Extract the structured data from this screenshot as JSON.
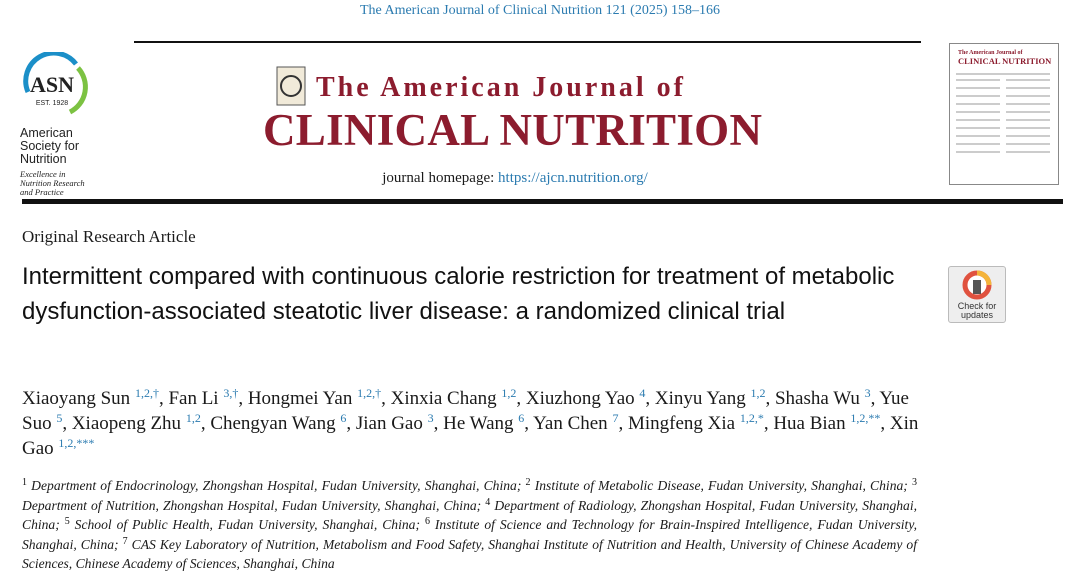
{
  "header": {
    "citation": "The American Journal of Clinical Nutrition 121 (2025) 158–166"
  },
  "society": {
    "logo": "ASN",
    "established": "EST. 1928",
    "name_lines": [
      "American",
      "Society for",
      "Nutrition"
    ],
    "tagline_lines": [
      "Excellence in",
      "Nutrition Research",
      "and Practice"
    ]
  },
  "journal": {
    "title_line1": "The American Journal of",
    "title_line2": "CLINICAL NUTRITION",
    "homepage_label": "journal homepage:",
    "homepage_url": "https://ajcn.nutrition.org/"
  },
  "article": {
    "type": "Original Research Article",
    "title": "Intermittent compared with continuous calorie restriction for treatment of metabolic dysfunction-associated steatotic liver disease: a randomized clinical trial",
    "check_updates": [
      "Check for",
      "updates"
    ]
  },
  "authors_separator": ",",
  "authors": [
    {
      "name": "Xiaoyang Sun",
      "sup": "1,2,†"
    },
    {
      "name": "Fan Li",
      "sup": "3,†"
    },
    {
      "name": "Hongmei Yan",
      "sup": "1,2,†"
    },
    {
      "name": "Xinxia Chang",
      "sup": "1,2"
    },
    {
      "name": "Xiuzhong Yao",
      "sup": "4"
    },
    {
      "name": "Xinyu Yang",
      "sup": "1,2"
    },
    {
      "name": "Shasha Wu",
      "sup": "3"
    },
    {
      "name": "Yue Suo",
      "sup": "5"
    },
    {
      "name": "Xiaopeng Zhu",
      "sup": "1,2"
    },
    {
      "name": "Chengyan Wang",
      "sup": "6"
    },
    {
      "name": "Jian Gao",
      "sup": "3"
    },
    {
      "name": "He Wang",
      "sup": "6"
    },
    {
      "name": "Yan Chen",
      "sup": "7"
    },
    {
      "name": "Mingfeng Xia",
      "sup": "1,2,*"
    },
    {
      "name": "Hua Bian",
      "sup": "1,2,**"
    },
    {
      "name": "Xin Gao",
      "sup": "1,2,***"
    }
  ],
  "affiliations": [
    {
      "num": "1",
      "text": "Department of Endocrinology, Zhongshan Hospital, Fudan University, Shanghai, China;"
    },
    {
      "num": "2",
      "text": "Institute of Metabolic Disease, Fudan University, Shanghai, China;"
    },
    {
      "num": "3",
      "text": "Department of Nutrition, Zhongshan Hospital, Fudan University, Shanghai, China;"
    },
    {
      "num": "4",
      "text": "Department of Radiology, Zhongshan Hospital, Fudan University, Shanghai, China;"
    },
    {
      "num": "5",
      "text": "School of Public Health, Fudan University, Shanghai, China;"
    },
    {
      "num": "6",
      "text": "Institute of Science and Technology for Brain-Inspired Intelligence, Fudan University, Shanghai, China;"
    },
    {
      "num": "7",
      "text": "CAS Key Laboratory of Nutrition, Metabolism and Food Safety, Shanghai Institute of Nutrition and Health, University of Chinese Academy of Sciences, Chinese Academy of Sciences, Shanghai, China"
    }
  ]
}
